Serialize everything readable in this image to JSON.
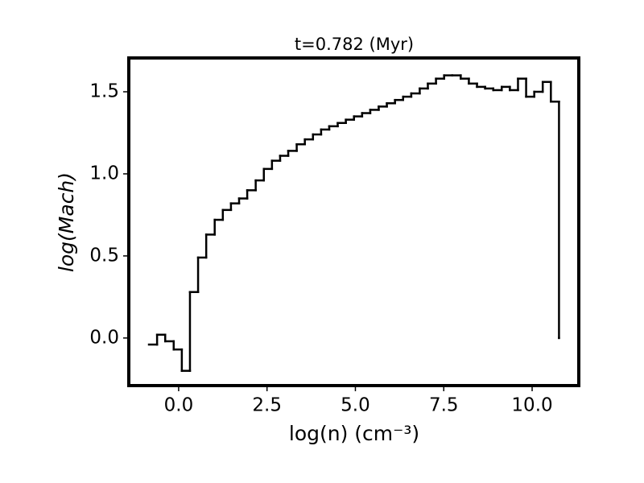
{
  "chart_data": {
    "type": "step",
    "title": "t=0.782 (Myr)",
    "x_label": "log(n) (cm⁻³)",
    "y_label": "log(Mach)",
    "color": "#000000",
    "x": [
      -0.84,
      -0.61,
      -0.38,
      -0.14,
      0.09,
      0.32,
      0.55,
      0.78,
      1.02,
      1.25,
      1.48,
      1.71,
      1.94,
      2.18,
      2.41,
      2.64,
      2.87,
      3.1,
      3.34,
      3.57,
      3.8,
      4.03,
      4.26,
      4.5,
      4.73,
      4.96,
      5.19,
      5.42,
      5.66,
      5.89,
      6.12,
      6.35,
      6.58,
      6.82,
      7.05,
      7.28,
      7.51,
      7.74,
      7.98,
      8.21,
      8.44,
      8.67,
      8.9,
      9.14,
      9.37,
      9.6,
      9.83,
      10.06,
      10.3,
      10.53,
      10.76
    ],
    "values": [
      -0.04,
      0.02,
      -0.02,
      -0.07,
      -0.2,
      0.28,
      0.49,
      0.63,
      0.72,
      0.78,
      0.82,
      0.85,
      0.9,
      0.96,
      1.03,
      1.08,
      1.11,
      1.14,
      1.18,
      1.21,
      1.24,
      1.27,
      1.29,
      1.31,
      1.33,
      1.35,
      1.37,
      1.39,
      1.41,
      1.43,
      1.45,
      1.47,
      1.49,
      1.52,
      1.55,
      1.58,
      1.6,
      1.6,
      1.58,
      1.55,
      1.53,
      1.52,
      1.51,
      1.53,
      1.51,
      1.58,
      1.47,
      1.5,
      1.56,
      1.44,
      0.0
    ],
    "xlim": [
      -1.41,
      11.32
    ],
    "ylim": [
      -0.29,
      1.706
    ],
    "xticks": [
      {
        "value": 0,
        "label": "0.0"
      },
      2.5,
      {
        "value": 5,
        "label": "5.0"
      },
      7.5,
      {
        "value": 10,
        "label": "10.0"
      }
    ],
    "yticks": [
      {
        "value": 0,
        "label": "0.0"
      },
      0.5,
      {
        "value": 1,
        "label": "1.0"
      },
      1.5
    ]
  }
}
